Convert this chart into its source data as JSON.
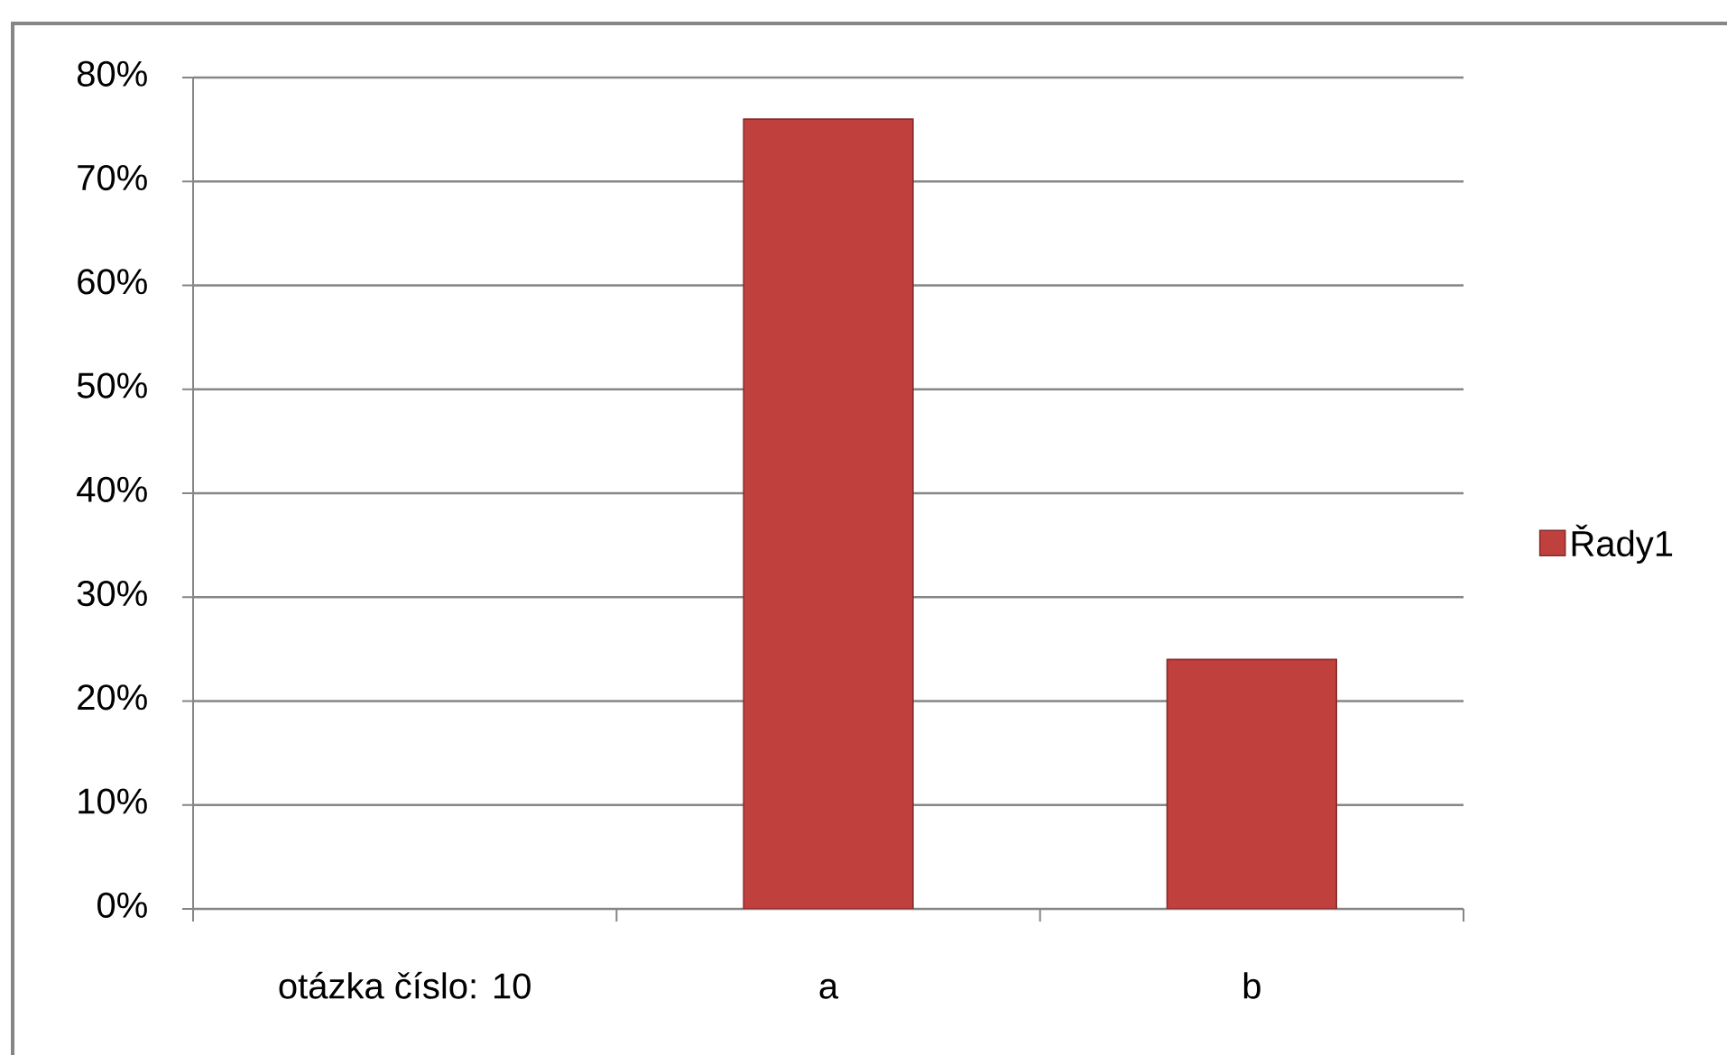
{
  "chart_data": {
    "type": "bar",
    "categories": [
      "otázka číslo: 10",
      "a",
      "b"
    ],
    "series": [
      {
        "name": "Řady1",
        "color": "#c0403d",
        "values": [
          null,
          76,
          24
        ]
      }
    ],
    "ylim": [
      0,
      80
    ],
    "yticks": [
      {
        "value": 0,
        "label": "0%"
      },
      {
        "value": 10,
        "label": "10%"
      },
      {
        "value": 20,
        "label": "20%"
      },
      {
        "value": 30,
        "label": "30%"
      },
      {
        "value": 40,
        "label": "40%"
      },
      {
        "value": 50,
        "label": "50%"
      },
      {
        "value": 60,
        "label": "60%"
      },
      {
        "value": 70,
        "label": "70%"
      },
      {
        "value": 80,
        "label": "80%"
      }
    ],
    "grid": "y",
    "legend": "right"
  }
}
